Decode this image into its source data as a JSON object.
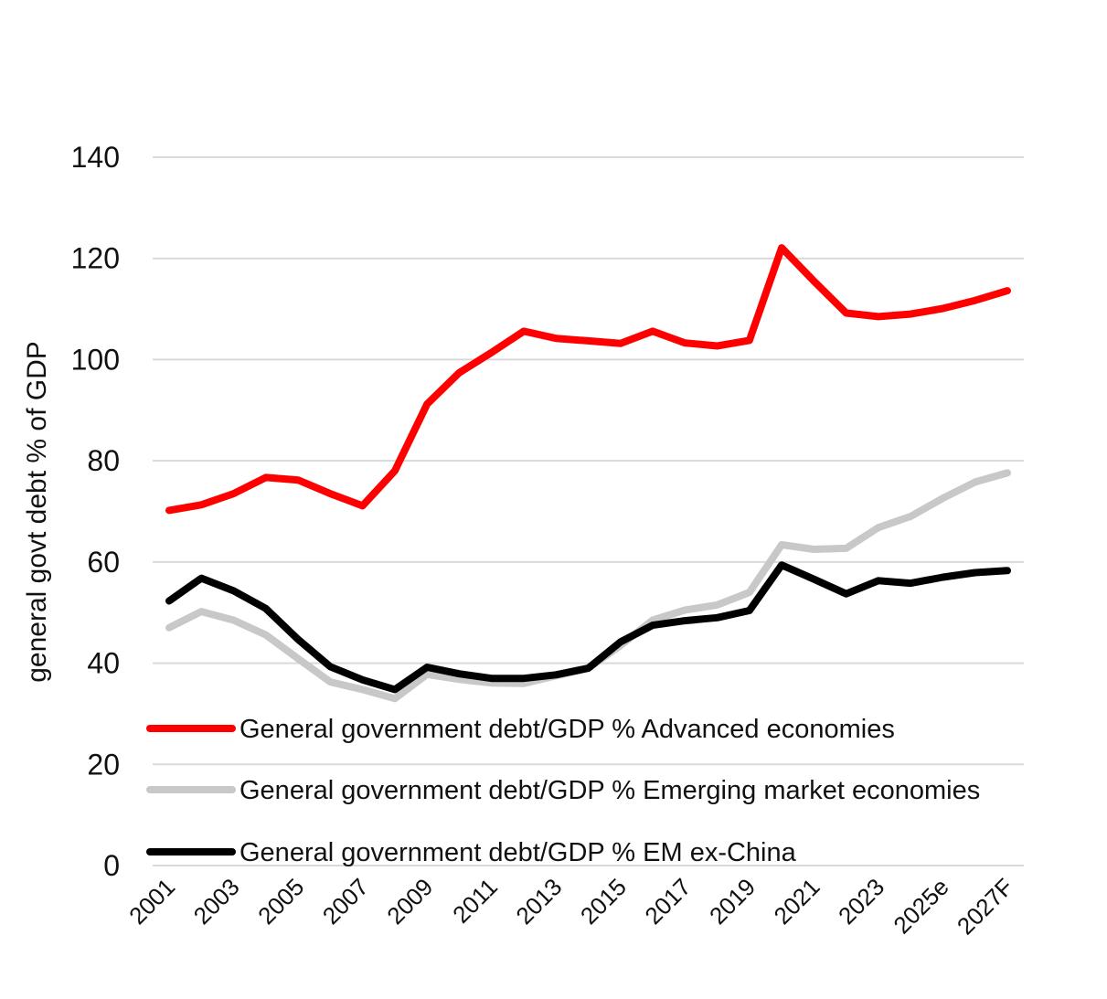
{
  "chart_data": {
    "type": "line",
    "ylabel": "general govt debt % of GDP",
    "xlabel": "",
    "ylim": [
      0,
      140
    ],
    "yticks": [
      "0",
      "20",
      "40",
      "60",
      "80",
      "100",
      "120",
      "140"
    ],
    "grid": true,
    "legend_position": "bottom-left inside plot",
    "categories": [
      "2001",
      "2002",
      "2003",
      "2004",
      "2005",
      "2006",
      "2007",
      "2008",
      "2009",
      "2010",
      "2011",
      "2012",
      "2013",
      "2014",
      "2015",
      "2016",
      "2017",
      "2018",
      "2019",
      "2020",
      "2021",
      "2022",
      "2023",
      "2024",
      "2025e",
      "2026",
      "2027F"
    ],
    "x_tick_labels": [
      "2001",
      "2003",
      "2005",
      "2007",
      "2009",
      "2011",
      "2013",
      "2015",
      "2017",
      "2019",
      "2021",
      "2023",
      "2025e",
      "2027F"
    ],
    "series": [
      {
        "name": "General government debt/GDP % Advanced economies",
        "color": "#ff0000",
        "values": [
          70.2,
          71.3,
          73.5,
          76.7,
          76.2,
          73.5,
          71.1,
          78.0,
          91.2,
          97.4,
          101.4,
          105.6,
          104.2,
          103.7,
          103.2,
          105.6,
          103.3,
          102.7,
          103.8,
          122.1,
          115.5,
          109.2,
          108.5,
          109.0,
          110.1,
          111.7,
          113.6
        ]
      },
      {
        "name": "General government debt/GDP % Emerging market economies",
        "color": "#c8c8c8",
        "values": [
          47.0,
          50.2,
          48.5,
          45.6,
          40.9,
          36.3,
          34.8,
          33.0,
          37.8,
          36.8,
          36.1,
          36.0,
          37.5,
          39.0,
          43.5,
          48.5,
          50.5,
          51.5,
          54.0,
          63.4,
          62.5,
          62.7,
          66.8,
          69.0,
          72.6,
          75.8,
          77.6
        ]
      },
      {
        "name": "General government debt/GDP % EM ex-China",
        "color": "#000000",
        "values": [
          52.3,
          56.8,
          54.3,
          50.8,
          44.7,
          39.3,
          36.7,
          34.8,
          39.2,
          37.9,
          37.0,
          37.0,
          37.7,
          39.0,
          44.2,
          47.5,
          48.4,
          49.0,
          50.4,
          59.4,
          56.6,
          53.7,
          56.3,
          55.8,
          57.0,
          57.9,
          58.3
        ]
      }
    ]
  }
}
